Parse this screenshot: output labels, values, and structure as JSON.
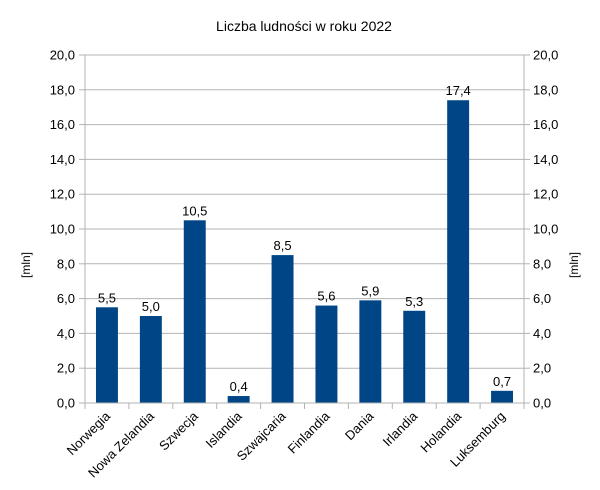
{
  "chart_data": {
    "type": "bar",
    "title": "Liczba ludności w roku 2022",
    "categories": [
      "Norwegia",
      "Nowa Zelandia",
      "Szwecja",
      "Islandia",
      "Szwajcaria",
      "Finlandia",
      "Dania",
      "Irlandia",
      "Holandia",
      "Luksemburg"
    ],
    "values": [
      5.5,
      5.0,
      10.5,
      0.4,
      8.5,
      5.6,
      5.9,
      5.3,
      17.4,
      0.7
    ],
    "value_labels": [
      "5,5",
      "5,0",
      "10,5",
      "0,4",
      "8,5",
      "5,6",
      "5,9",
      "5,3",
      "17,4",
      "0,7"
    ],
    "ylabel": "[mln]",
    "ylabel_right": "[mln]",
    "ylim": [
      0,
      20
    ],
    "yticks": [
      0,
      2,
      4,
      6,
      8,
      10,
      12,
      14,
      16,
      18,
      20
    ],
    "ytick_labels": [
      "0,0",
      "2,0",
      "4,0",
      "6,0",
      "8,0",
      "10,0",
      "12,0",
      "14,0",
      "16,0",
      "18,0",
      "20,0"
    ],
    "grid": true,
    "bar_color": "#004586",
    "grid_color": "#b3b3b3"
  }
}
